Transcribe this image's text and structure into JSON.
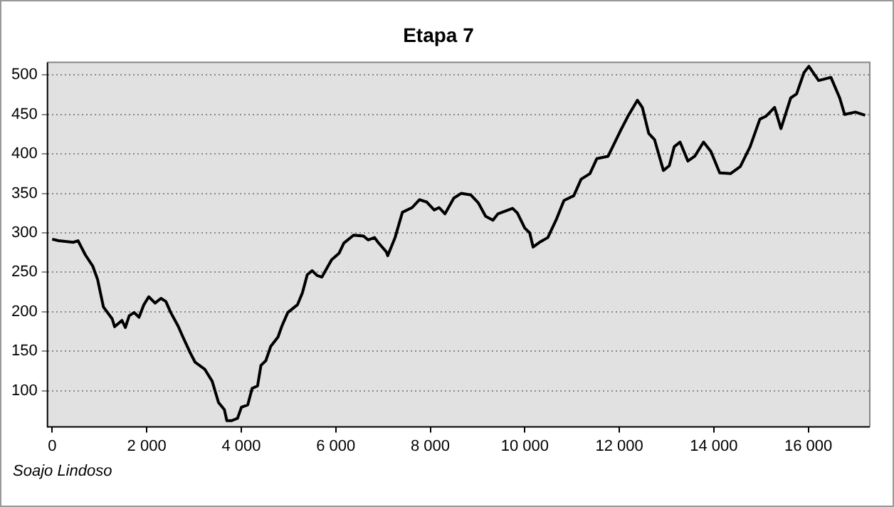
{
  "chart_data": {
    "type": "line",
    "title": "Etapa 7",
    "annotations": [
      "Soajo Lindoso"
    ],
    "x": [
      0,
      134,
      444,
      547,
      702,
      857,
      960,
      1084,
      1269,
      1321,
      1476,
      1548,
      1630,
      1734,
      1837,
      1940,
      2043,
      2177,
      2301,
      2405,
      2508,
      2663,
      2766,
      2920,
      3024,
      3230,
      3385,
      3519,
      3643,
      3695,
      3798,
      3922,
      4004,
      4138,
      4231,
      4345,
      4417,
      4520,
      4623,
      4778,
      4861,
      4985,
      5191,
      5294,
      5397,
      5501,
      5604,
      5707,
      5913,
      6068,
      6171,
      6378,
      6584,
      6687,
      6821,
      6894,
      7069,
      7100,
      7255,
      7410,
      7616,
      7771,
      7926,
      8083,
      8187,
      8311,
      8497,
      8653,
      8860,
      9016,
      9171,
      9326,
      9430,
      9741,
      9845,
      10000,
      10104,
      10176,
      10311,
      10487,
      10674,
      10829,
      11036,
      11192,
      11378,
      11523,
      11762,
      12021,
      12176,
      12383,
      12487,
      12622,
      12746,
      12933,
      13057,
      13161,
      13285,
      13451,
      13596,
      13782,
      13938,
      14124,
      14352,
      14560,
      14767,
      14974,
      15109,
      15285,
      15420,
      15627,
      15751,
      15907,
      16010,
      16218,
      16477,
      16663,
      16767,
      16995,
      17202
    ],
    "series": [
      {
        "color": "#000000",
        "values": [
          292,
          290,
          288,
          290,
          272,
          258,
          241,
          206,
          191,
          181,
          189,
          180,
          195,
          199,
          193,
          209,
          219,
          211,
          217,
          213,
          199,
          182,
          168,
          148,
          136,
          127,
          112,
          85,
          76,
          62,
          62,
          65,
          79,
          82,
          103,
          106,
          132,
          138,
          156,
          168,
          182,
          199,
          209,
          224,
          247,
          252,
          246,
          244,
          266,
          274,
          287,
          297,
          296,
          291,
          294,
          288,
          276,
          271,
          294,
          326,
          332,
          342,
          339,
          329,
          332,
          324,
          344,
          350,
          348,
          338,
          321,
          316,
          324,
          331,
          325,
          306,
          300,
          282,
          288,
          294,
          318,
          341,
          347,
          368,
          375,
          394,
          397,
          429,
          447,
          468,
          459,
          426,
          418,
          379,
          385,
          409,
          415,
          391,
          397,
          415,
          403,
          376,
          375,
          384,
          409,
          444,
          448,
          459,
          432,
          471,
          476,
          503,
          511,
          493,
          497,
          471,
          450,
          453,
          449
        ]
      }
    ],
    "xlim": [
      -100,
      17300
    ],
    "ylim": [
      54,
      516
    ],
    "xticks": [
      0,
      {
        "value": 2000,
        "label": "2 000"
      },
      {
        "value": 4000,
        "label": "4 000"
      },
      {
        "value": 6000,
        "label": "6 000"
      },
      {
        "value": 8000,
        "label": "8 000"
      },
      {
        "value": 10000,
        "label": "10 000"
      },
      {
        "value": 12000,
        "label": "12 000"
      },
      {
        "value": 14000,
        "label": "14 000"
      },
      {
        "value": 16000,
        "label": "16 000"
      }
    ],
    "yticks": [
      100,
      150,
      200,
      250,
      300,
      350,
      400,
      450,
      500
    ],
    "grid": "y",
    "legend": false,
    "marker": "none",
    "line_style": "solid"
  }
}
